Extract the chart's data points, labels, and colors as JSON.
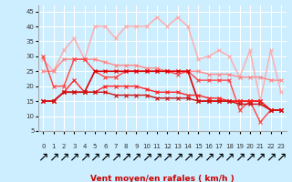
{
  "background_color": "#cceeff",
  "grid_color": "#ffffff",
  "xlabel": "Vent moyen/en rafales ( km/h )",
  "x": [
    0,
    1,
    2,
    3,
    4,
    5,
    6,
    7,
    8,
    9,
    10,
    11,
    12,
    13,
    14,
    15,
    16,
    17,
    18,
    19,
    20,
    21,
    22,
    23
  ],
  "series": [
    {
      "color": "#ffaaaa",
      "lw": 1.0,
      "marker": "x",
      "markersize": 3,
      "y": [
        29,
        25,
        32,
        36,
        29,
        40,
        40,
        36,
        40,
        40,
        40,
        43,
        40,
        43,
        40,
        29,
        30,
        32,
        30,
        23,
        32,
        15,
        32,
        18
      ]
    },
    {
      "color": "#ff8888",
      "lw": 1.0,
      "marker": "x",
      "markersize": 3,
      "y": [
        25,
        25,
        29,
        29,
        29,
        29,
        28,
        27,
        27,
        27,
        26,
        26,
        25,
        25,
        25,
        25,
        24,
        24,
        24,
        23,
        23,
        23,
        22,
        22
      ]
    },
    {
      "color": "#ff4444",
      "lw": 1.0,
      "marker": "x",
      "markersize": 3,
      "y": [
        30,
        20,
        20,
        29,
        29,
        25,
        23,
        23,
        25,
        25,
        25,
        25,
        25,
        24,
        25,
        22,
        22,
        22,
        22,
        12,
        15,
        8,
        12,
        12
      ]
    },
    {
      "color": "#dd0000",
      "lw": 1.2,
      "marker": "x",
      "markersize": 3,
      "y": [
        15,
        15,
        18,
        18,
        18,
        25,
        25,
        25,
        25,
        25,
        25,
        25,
        25,
        25,
        25,
        15,
        15,
        15,
        15,
        15,
        15,
        15,
        12,
        12
      ]
    },
    {
      "color": "#ff2222",
      "lw": 1.0,
      "marker": "x",
      "markersize": 3,
      "y": [
        15,
        15,
        18,
        22,
        18,
        18,
        20,
        20,
        20,
        20,
        19,
        18,
        18,
        18,
        17,
        17,
        16,
        16,
        15,
        15,
        15,
        15,
        12,
        12
      ]
    },
    {
      "color": "#cc1111",
      "lw": 1.0,
      "marker": "x",
      "markersize": 3,
      "y": [
        15,
        15,
        18,
        18,
        18,
        18,
        18,
        17,
        17,
        17,
        17,
        16,
        16,
        16,
        16,
        15,
        15,
        15,
        15,
        14,
        14,
        14,
        12,
        12
      ]
    }
  ],
  "ylim": [
    5,
    47
  ],
  "yticks": [
    5,
    10,
    15,
    20,
    25,
    30,
    35,
    40,
    45
  ],
  "xticks": [
    0,
    1,
    2,
    3,
    4,
    5,
    6,
    7,
    8,
    9,
    10,
    11,
    12,
    13,
    14,
    15,
    16,
    17,
    18,
    19,
    20,
    21,
    22,
    23
  ],
  "arrow_symbol": "↗",
  "label_fontsize": 6.5,
  "tick_fontsize": 5.0
}
